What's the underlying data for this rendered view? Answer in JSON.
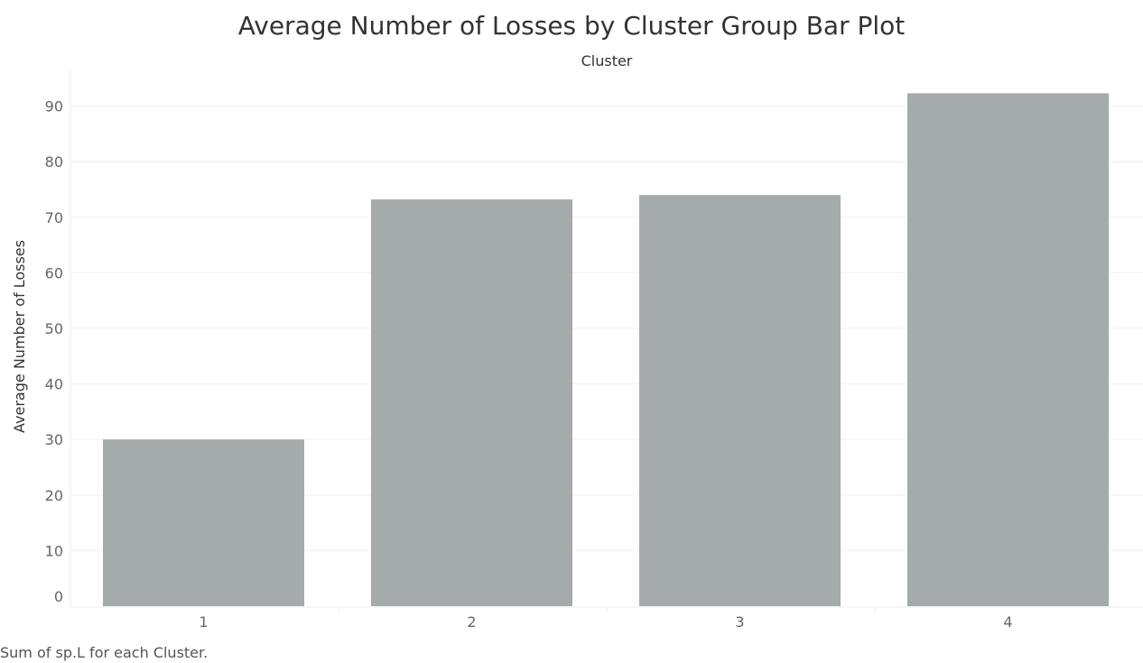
{
  "chart_data": {
    "type": "bar",
    "title": "Average Number of Losses by Cluster Group Bar Plot",
    "column_header": "Cluster",
    "ylabel": "Average Number of Losses",
    "categories": [
      "1",
      "2",
      "3",
      "4"
    ],
    "values": [
      30,
      73.2,
      74,
      92.3
    ],
    "ylim": [
      0,
      95
    ],
    "yticks": [
      0,
      10,
      20,
      30,
      40,
      50,
      60,
      70,
      80,
      90
    ],
    "grid": true,
    "bar_color": "#a5abab",
    "caption": "Sum of sp.L for each Cluster."
  }
}
